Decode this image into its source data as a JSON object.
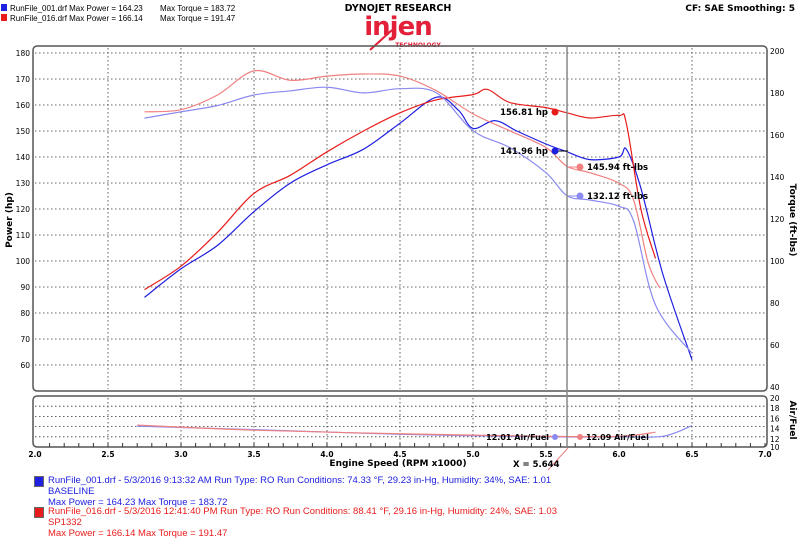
{
  "header": {
    "run1_summary": "RunFile_001.drf Max Power = 164.23",
    "run1_torque": "Max Torque = 183.72",
    "run2_summary": "RunFile_016.drf Max Power = 166.14",
    "run2_torque": "Max Torque = 191.47",
    "brand_top": "DYNOJET RESEARCH",
    "logo_text": "injen",
    "logo_sub": "TECHNOLOGY",
    "settings": "CF: SAE  Smoothing: 5"
  },
  "colors": {
    "run1_power": "#1f1fe0",
    "run1_torque": "#8a8af0",
    "run2_power": "#e81c1c",
    "run2_torque": "#f08080",
    "logo": "#e3203a"
  },
  "chart_data": {
    "type": "line",
    "xlabel": "Engine Speed (RPM x1000)",
    "ylabel_left": "Power (hp)",
    "ylabel_right": "Torque (ft-lbs)",
    "ylabel_afr": "Air/Fuel",
    "xlim": [
      2.0,
      7.0
    ],
    "ylim_left": [
      50,
      180
    ],
    "ylim_right": [
      40,
      200
    ],
    "ylim_afr": [
      10,
      20
    ],
    "grid": true,
    "x_ticks": [
      "2.0",
      "2.5",
      "3.0",
      "3.5",
      "4.0",
      "4.5",
      "5.0",
      "5.5",
      "6.0",
      "6.5",
      "7.0"
    ],
    "left_ticks": [
      "60",
      "70",
      "80",
      "90",
      "100",
      "110",
      "120",
      "130",
      "140",
      "150",
      "160",
      "170",
      "180"
    ],
    "right_ticks": [
      "40",
      "60",
      "80",
      "100",
      "120",
      "140",
      "160",
      "180",
      "200"
    ],
    "afr_ticks": [
      "10",
      "12",
      "14",
      "16",
      "18",
      "20"
    ],
    "cursor": {
      "x": 5.644,
      "label": "X = 5.644"
    },
    "series": [
      {
        "name": "RunFile_001.drf Power",
        "axis": "left",
        "color": "#1f1fe0",
        "x": [
          2.75,
          3.0,
          3.25,
          3.5,
          3.75,
          4.0,
          4.25,
          4.5,
          4.75,
          4.9,
          5.0,
          5.15,
          5.3,
          5.5,
          5.644,
          5.8,
          6.0,
          6.05,
          6.15,
          6.3,
          6.5
        ],
        "y": [
          86,
          97,
          106,
          119,
          130,
          137,
          143,
          153,
          163,
          158,
          151,
          154,
          150,
          145,
          142,
          139,
          140,
          143,
          128,
          95,
          62
        ]
      },
      {
        "name": "RunFile_016.drf Power",
        "axis": "left",
        "color": "#e81c1c",
        "x": [
          2.75,
          3.0,
          3.25,
          3.5,
          3.75,
          4.0,
          4.25,
          4.5,
          4.75,
          5.0,
          5.1,
          5.25,
          5.5,
          5.644,
          5.8,
          6.0,
          6.05,
          6.15,
          6.25
        ],
        "y": [
          89,
          98,
          111,
          126,
          133,
          142,
          150,
          157,
          162,
          164,
          166,
          161,
          159,
          157,
          155,
          156,
          153,
          120,
          101
        ]
      },
      {
        "name": "RunFile_001.drf Torque",
        "axis": "right",
        "color": "#8a8af0",
        "x": [
          2.75,
          3.0,
          3.25,
          3.5,
          3.75,
          4.0,
          4.25,
          4.5,
          4.75,
          5.0,
          5.25,
          5.5,
          5.644,
          5.8,
          6.0,
          6.1,
          6.25,
          6.5
        ],
        "y": [
          169,
          172,
          175,
          180,
          182,
          183.7,
          181,
          183,
          181,
          163,
          155,
          143,
          132,
          130,
          127,
          120,
          80,
          57
        ]
      },
      {
        "name": "RunFile_016.drf Torque",
        "axis": "right",
        "color": "#f08080",
        "x": [
          2.75,
          3.0,
          3.25,
          3.5,
          3.75,
          4.0,
          4.25,
          4.5,
          4.75,
          5.0,
          5.25,
          5.5,
          5.644,
          5.8,
          6.0,
          6.1,
          6.2,
          6.28
        ],
        "y": [
          172,
          173,
          180,
          191.5,
          187,
          189,
          190,
          189,
          182,
          171,
          163,
          155,
          146,
          143,
          138,
          130,
          100,
          88
        ]
      },
      {
        "name": "RunFile_001.drf Air/Fuel",
        "axis": "afr",
        "color": "#8a8af0",
        "x": [
          2.7,
          3.5,
          4.5,
          5.5,
          6.0,
          6.3,
          6.5
        ],
        "y": [
          14.1,
          13.4,
          12.5,
          12.0,
          12.0,
          12.1,
          14.2
        ]
      },
      {
        "name": "RunFile_016.drf Air/Fuel",
        "axis": "afr",
        "color": "#f08080",
        "x": [
          2.7,
          3.5,
          4.5,
          5.5,
          6.0,
          6.25
        ],
        "y": [
          14.3,
          13.3,
          12.6,
          12.1,
          12.1,
          12.9
        ]
      }
    ],
    "cursor_readouts": {
      "run2_power": "156.81 hp",
      "run1_power": "141.96 hp",
      "run2_torque": "145.94 ft-lbs",
      "run1_torque": "132.12 ft-lbs",
      "run1_afr": "12.01 Air/Fuel",
      "run2_afr": "12.09 Air/Fuel"
    }
  },
  "legend": [
    {
      "line1": "RunFile_001.drf - 5/3/2016 9:13:32 AM  Run Type: RO  Run Conditions: 74.33 °F, 29.23 in-Hg,  Humidity:  34%, SAE: 1.01",
      "line2": "BASELINE",
      "line3": "Max Power = 164.23  Max Torque = 183.72",
      "color": "#2020e0"
    },
    {
      "line1": "RunFile_016.drf - 5/3/2016 12:41:40 PM  Run Type: RO  Run Conditions: 88.41 °F, 29.16 in-Hg,  Humidity:  24%, SAE: 1.03",
      "line2": "SP1332",
      "line3": "Max Power = 166.14  Max Torque = 191.47",
      "color": "#e81c1c"
    }
  ]
}
